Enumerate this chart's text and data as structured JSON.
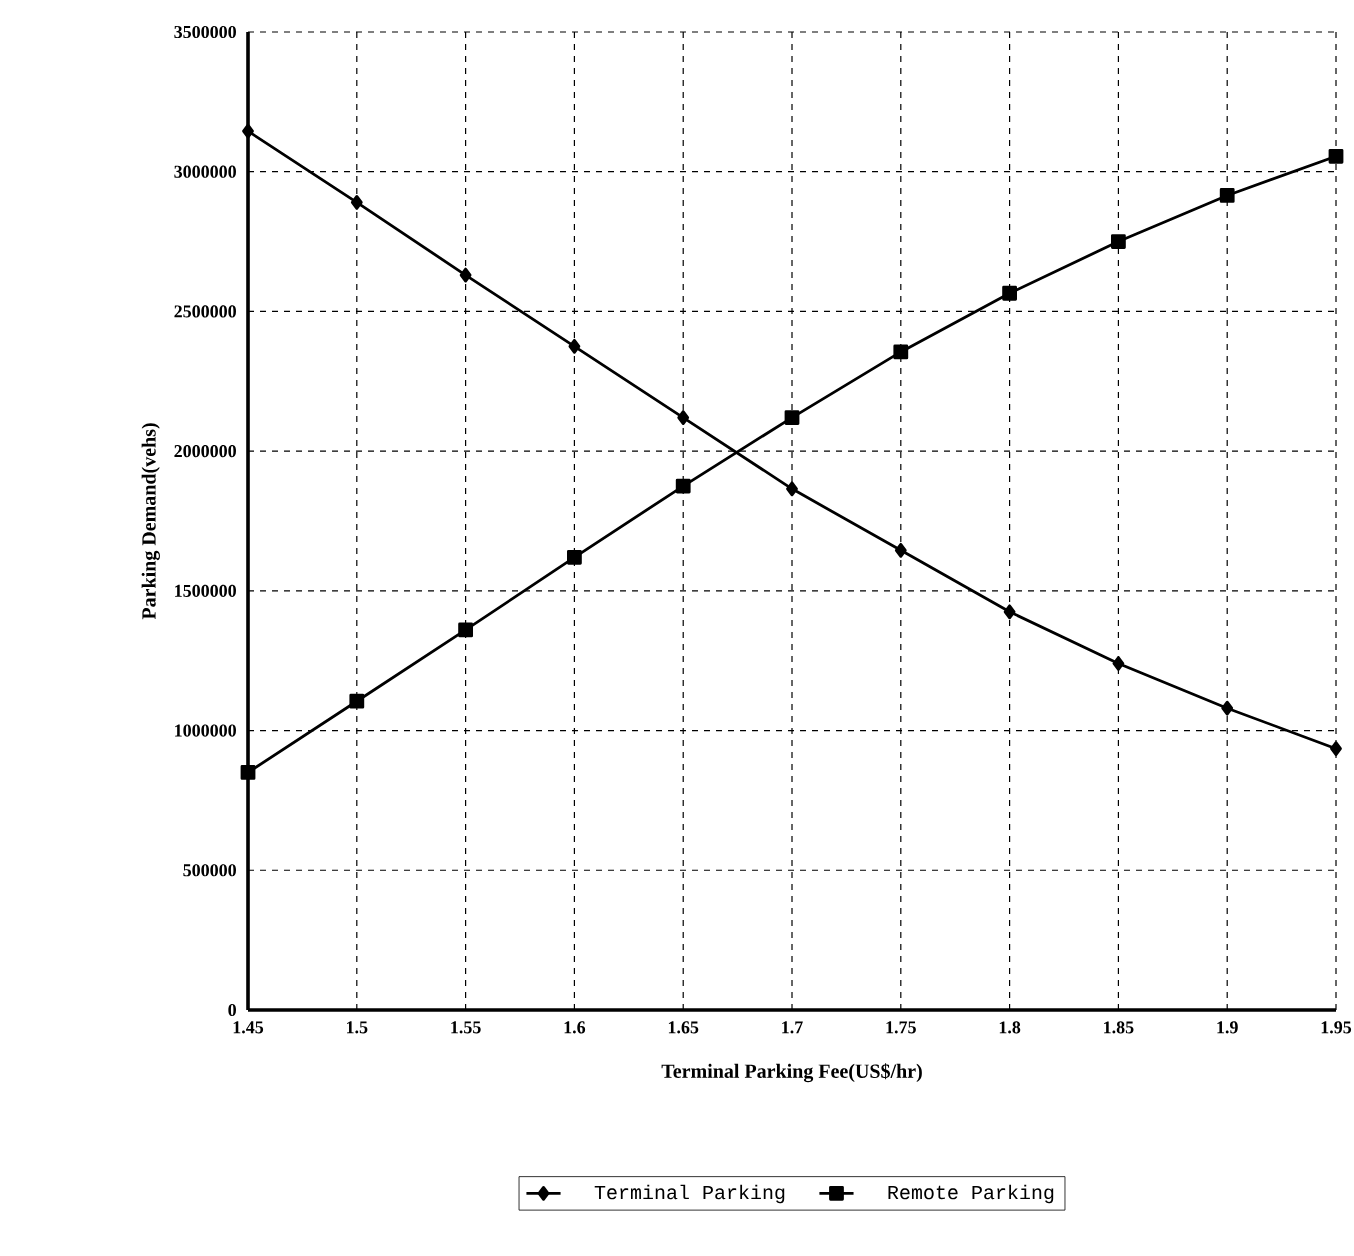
{
  "chart_data": {
    "type": "line",
    "xlabel": "Terminal Parking Fee(US$/hr)",
    "ylabel": "Parking Demand(vehs)",
    "x": [
      1.45,
      1.5,
      1.55,
      1.6,
      1.65,
      1.7,
      1.75,
      1.8,
      1.85,
      1.9,
      1.95
    ],
    "series": [
      {
        "name": "Terminal Parking",
        "color": "#000000",
        "marker": "diamond",
        "values": [
          3145000,
          2890000,
          2630000,
          2375000,
          2120000,
          1865000,
          1645000,
          1425000,
          1240000,
          1080000,
          935000
        ]
      },
      {
        "name": "Remote Parking",
        "color": "#000000",
        "marker": "square",
        "values": [
          850000,
          1105000,
          1360000,
          1620000,
          1875000,
          2120000,
          2355000,
          2565000,
          2750000,
          2915000,
          3055000
        ]
      }
    ],
    "xlim": [
      1.45,
      1.95
    ],
    "xticks": [
      1.45,
      1.5,
      1.55,
      1.6,
      1.65,
      1.7,
      1.75,
      1.8,
      1.85,
      1.9,
      1.95
    ],
    "ylim": [
      0,
      3500000
    ],
    "yticks": [
      0,
      500000,
      1000000,
      1500000,
      2000000,
      2500000,
      3000000,
      3500000
    ],
    "grid": true,
    "legend": "bottom",
    "line_style": "solid"
  }
}
